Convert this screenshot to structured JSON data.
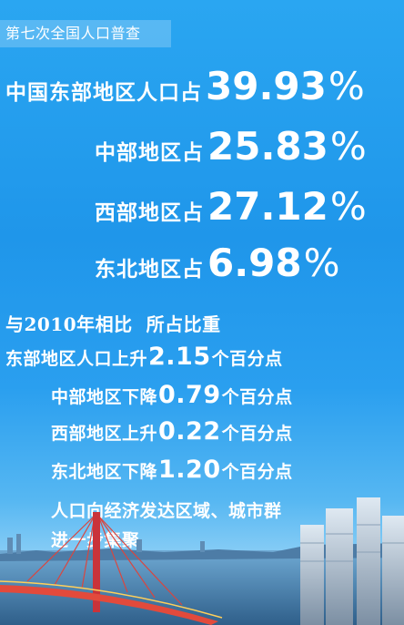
{
  "tag": "第七次全国人口普查",
  "shares": [
    {
      "label": "中国东部地区人口占",
      "value": "39.93",
      "unit": "%"
    },
    {
      "label": "中部地区占",
      "value": "25.83",
      "unit": "%"
    },
    {
      "label": "西部地区占",
      "value": "27.12",
      "unit": "%"
    },
    {
      "label": "东北地区占",
      "value": "6.98",
      "unit": "%"
    }
  ],
  "compare_heading": "与2010年相比  所占比重",
  "changes": [
    {
      "prefix": "东部地区人口上升",
      "value": "2.15",
      "suffix": "个百分点"
    },
    {
      "prefix": "中部地区下降",
      "value": "0.79",
      "suffix": "个百分点"
    },
    {
      "prefix": "西部地区上升",
      "value": "0.22",
      "suffix": "个百分点"
    },
    {
      "prefix": "东北地区下降",
      "value": "1.20",
      "suffix": "个百分点"
    }
  ],
  "conclusion_line1": "人口向经济发达区域、城市群",
  "conclusion_line2": "进一步集聚",
  "colors": {
    "text": "#ffffff",
    "background": "#1f96ea"
  }
}
